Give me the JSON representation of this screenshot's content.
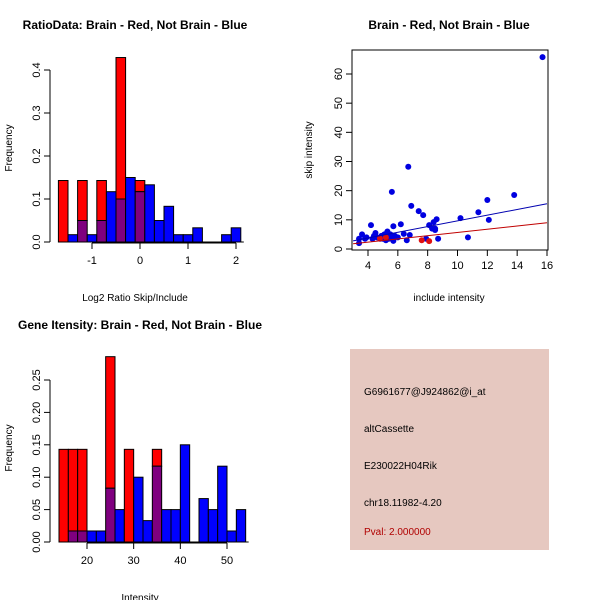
{
  "colors": {
    "red": "#ff0000",
    "blue": "#0000ff",
    "overlap": "#7f007f",
    "panel": "#e6c8c0",
    "pval": "#b00000",
    "blue_line": "#0000b0",
    "red_line": "#c00000"
  },
  "chart_data": [
    {
      "type": "bar",
      "title": "RatioData: Brain - Red, Not Brain - Blue",
      "xlabel": "Log2 Ratio Skip/Include",
      "ylabel": "Frequency",
      "xlim": [
        -1.7,
        2.1
      ],
      "ylim": [
        0,
        0.43
      ],
      "bin_width": 0.2,
      "bin_start": -1.7,
      "xticks": [
        "-1",
        "0",
        "1",
        "2"
      ],
      "xtick_values": [
        -1,
        0,
        1,
        2
      ],
      "yticks": [
        "0.0",
        "0.1",
        "0.2",
        "0.3",
        "0.4"
      ],
      "ytick_values": [
        0,
        0.1,
        0.2,
        0.3,
        0.4
      ],
      "series": [
        {
          "name": "Brain",
          "color": "red",
          "values": [
            0.143,
            0,
            0.143,
            0,
            0.143,
            0,
            0.429,
            0,
            0.143,
            0,
            0,
            0,
            0,
            0,
            0,
            0,
            0,
            0,
            0
          ]
        },
        {
          "name": "Not Brain",
          "color": "blue",
          "values": [
            0,
            0.017,
            0.05,
            0.017,
            0.05,
            0.117,
            0.1,
            0.15,
            0.117,
            0.133,
            0.05,
            0.083,
            0.017,
            0.017,
            0.033,
            0,
            0,
            0.017,
            0.033
          ]
        }
      ]
    },
    {
      "type": "scatter",
      "title": "Brain - Red, Not Brain - Blue",
      "xlabel": "include intensity",
      "ylabel": "skip intensity",
      "xlim": [
        3,
        16.1
      ],
      "ylim": [
        0,
        68
      ],
      "xticks": [
        "4",
        "6",
        "8",
        "10",
        "12",
        "14",
        "16"
      ],
      "xtick_values": [
        4,
        6,
        8,
        10,
        12,
        14,
        16
      ],
      "yticks": [
        "0",
        "10",
        "20",
        "30",
        "40",
        "50",
        "60"
      ],
      "ytick_values": [
        0,
        10,
        20,
        30,
        40,
        50,
        60
      ],
      "series": [
        {
          "name": "Not Brain",
          "color": "blue",
          "points": [
            [
              3.4,
              2
            ],
            [
              3.4,
              3.5
            ],
            [
              3.6,
              5
            ],
            [
              3.8,
              3.5
            ],
            [
              3.9,
              4
            ],
            [
              4.2,
              8.2
            ],
            [
              4.3,
              3.5
            ],
            [
              4.4,
              4.5
            ],
            [
              4.5,
              5.5
            ],
            [
              4.6,
              4
            ],
            [
              4.8,
              3.5
            ],
            [
              4.9,
              4.5
            ],
            [
              5.0,
              3.5
            ],
            [
              5.1,
              5
            ],
            [
              5.2,
              3
            ],
            [
              5.3,
              6
            ],
            [
              5.3,
              4.5
            ],
            [
              5.4,
              3.5
            ],
            [
              5.5,
              5
            ],
            [
              5.6,
              4
            ],
            [
              5.6,
              19.6
            ],
            [
              5.7,
              7.8
            ],
            [
              5.7,
              2.8
            ],
            [
              5.8,
              4.5
            ],
            [
              6.0,
              4
            ],
            [
              6.2,
              8.5
            ],
            [
              6.4,
              5.2
            ],
            [
              6.6,
              3
            ],
            [
              6.7,
              28.2
            ],
            [
              6.8,
              4.8
            ],
            [
              6.9,
              14.8
            ],
            [
              7.4,
              13
            ],
            [
              7.7,
              11.6
            ],
            [
              7.9,
              3.5
            ],
            [
              8.1,
              8.2
            ],
            [
              8.3,
              7
            ],
            [
              8.4,
              9.2
            ],
            [
              8.5,
              6.5
            ],
            [
              8.5,
              7
            ],
            [
              8.6,
              10.2
            ],
            [
              8.7,
              3.5
            ],
            [
              10.2,
              10.6
            ],
            [
              10.7,
              4
            ],
            [
              11.4,
              12.6
            ],
            [
              12.0,
              16.8
            ],
            [
              12.1,
              10
            ],
            [
              13.8,
              18.5
            ],
            [
              15.7,
              65.8
            ]
          ],
          "fit": [
            [
              3,
              2.8
            ],
            [
              16,
              15.5
            ]
          ]
        },
        {
          "name": "Brain",
          "color": "red",
          "points": [
            [
              4.8,
              3.6
            ],
            [
              5.2,
              4
            ],
            [
              7.6,
              3
            ],
            [
              8.1,
              2.7
            ]
          ],
          "fit": [
            [
              3,
              1.8
            ],
            [
              16,
              9
            ]
          ]
        }
      ]
    },
    {
      "type": "bar",
      "title": "Gene Itensity: Brain - Red, Not Brain - Blue",
      "xlabel": "Intensity",
      "ylabel": "Frequency",
      "xlim": [
        14,
        54
      ],
      "ylim": [
        0,
        0.29
      ],
      "bin_width": 2,
      "bin_start": 14,
      "xticks": [
        "20",
        "30",
        "40",
        "50"
      ],
      "xtick_values": [
        20,
        30,
        40,
        50
      ],
      "yticks": [
        "0.00",
        "0.05",
        "0.10",
        "0.15",
        "0.20",
        "0.25"
      ],
      "ytick_values": [
        0,
        0.05,
        0.1,
        0.15,
        0.2,
        0.25
      ],
      "series": [
        {
          "name": "Brain",
          "color": "red",
          "values": [
            0.143,
            0.143,
            0.143,
            0,
            0,
            0.286,
            0,
            0.143,
            0,
            0,
            0.143,
            0,
            0,
            0,
            0,
            0,
            0,
            0,
            0,
            0
          ]
        },
        {
          "name": "Not Brain",
          "color": "blue",
          "values": [
            0,
            0.017,
            0.017,
            0.017,
            0.017,
            0.083,
            0.05,
            0,
            0.1,
            0.033,
            0.117,
            0.05,
            0.05,
            0.15,
            0,
            0.067,
            0.05,
            0.117,
            0.017,
            0.05
          ]
        }
      ]
    }
  ],
  "info": {
    "probe": "G6961677@J924862@i_at",
    "type": "altCassette",
    "gene": "E230022H04Rik",
    "location": "chr18.11982-4.20",
    "pval": "Pval: 2.000000"
  }
}
